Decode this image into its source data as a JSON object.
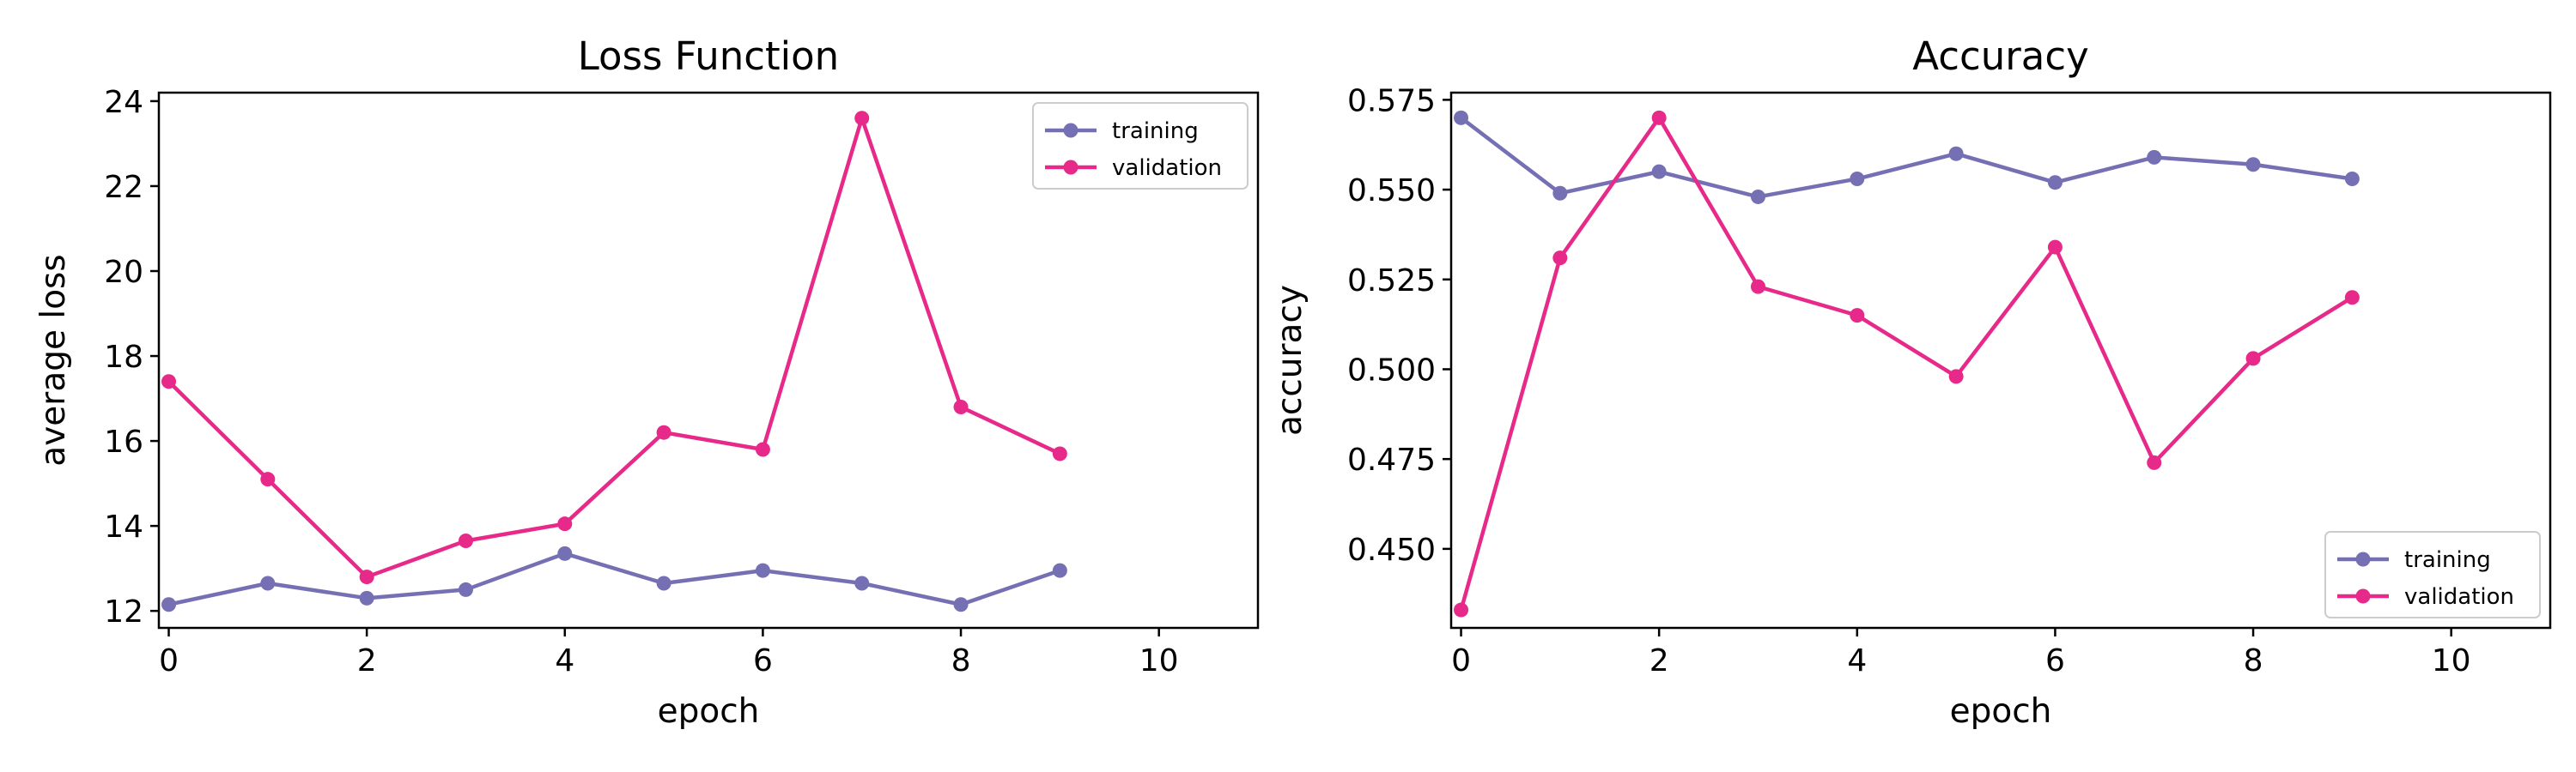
{
  "colors": {
    "training": "#7570b3",
    "validation": "#e7298a",
    "axis": "#000000",
    "legend_border": "#cccccc"
  },
  "chart_data": [
    {
      "type": "line",
      "title": "Loss Function",
      "xlabel": "epoch",
      "ylabel": "average loss",
      "xlim": [
        -0.1,
        11
      ],
      "ylim": [
        11.6,
        24.2
      ],
      "xticks": [
        0,
        2,
        4,
        6,
        8,
        10
      ],
      "yticks": [
        12,
        14,
        16,
        18,
        20,
        22,
        24
      ],
      "ytick_labels": [
        "12",
        "14",
        "16",
        "18",
        "20",
        "22",
        "24"
      ],
      "grid": false,
      "legend": "upper-right",
      "x": [
        0,
        1,
        2,
        3,
        4,
        5,
        6,
        7,
        8,
        9
      ],
      "series": [
        {
          "name": "training",
          "values": [
            12.15,
            12.65,
            12.3,
            12.5,
            13.35,
            12.65,
            12.95,
            12.65,
            12.15,
            12.95
          ]
        },
        {
          "name": "validation",
          "values": [
            17.4,
            15.1,
            12.8,
            13.65,
            14.05,
            16.2,
            15.8,
            23.6,
            16.8,
            15.7
          ]
        }
      ]
    },
    {
      "type": "line",
      "title": "Accuracy",
      "xlabel": "epoch",
      "ylabel": "accuracy",
      "xlim": [
        -0.1,
        11
      ],
      "ylim": [
        0.428,
        0.577
      ],
      "xticks": [
        0,
        2,
        4,
        6,
        8,
        10
      ],
      "yticks": [
        0.45,
        0.475,
        0.5,
        0.525,
        0.55,
        0.575
      ],
      "ytick_labels": [
        "0.450",
        "0.475",
        "0.500",
        "0.525",
        "0.550",
        "0.575"
      ],
      "grid": false,
      "legend": "lower-right",
      "x": [
        0,
        1,
        2,
        3,
        4,
        5,
        6,
        7,
        8,
        9
      ],
      "series": [
        {
          "name": "training",
          "values": [
            0.57,
            0.549,
            0.555,
            0.548,
            0.553,
            0.56,
            0.552,
            0.559,
            0.557,
            0.553
          ]
        },
        {
          "name": "validation",
          "values": [
            0.433,
            0.531,
            0.57,
            0.523,
            0.515,
            0.498,
            0.534,
            0.474,
            0.503,
            0.52
          ]
        }
      ]
    }
  ]
}
